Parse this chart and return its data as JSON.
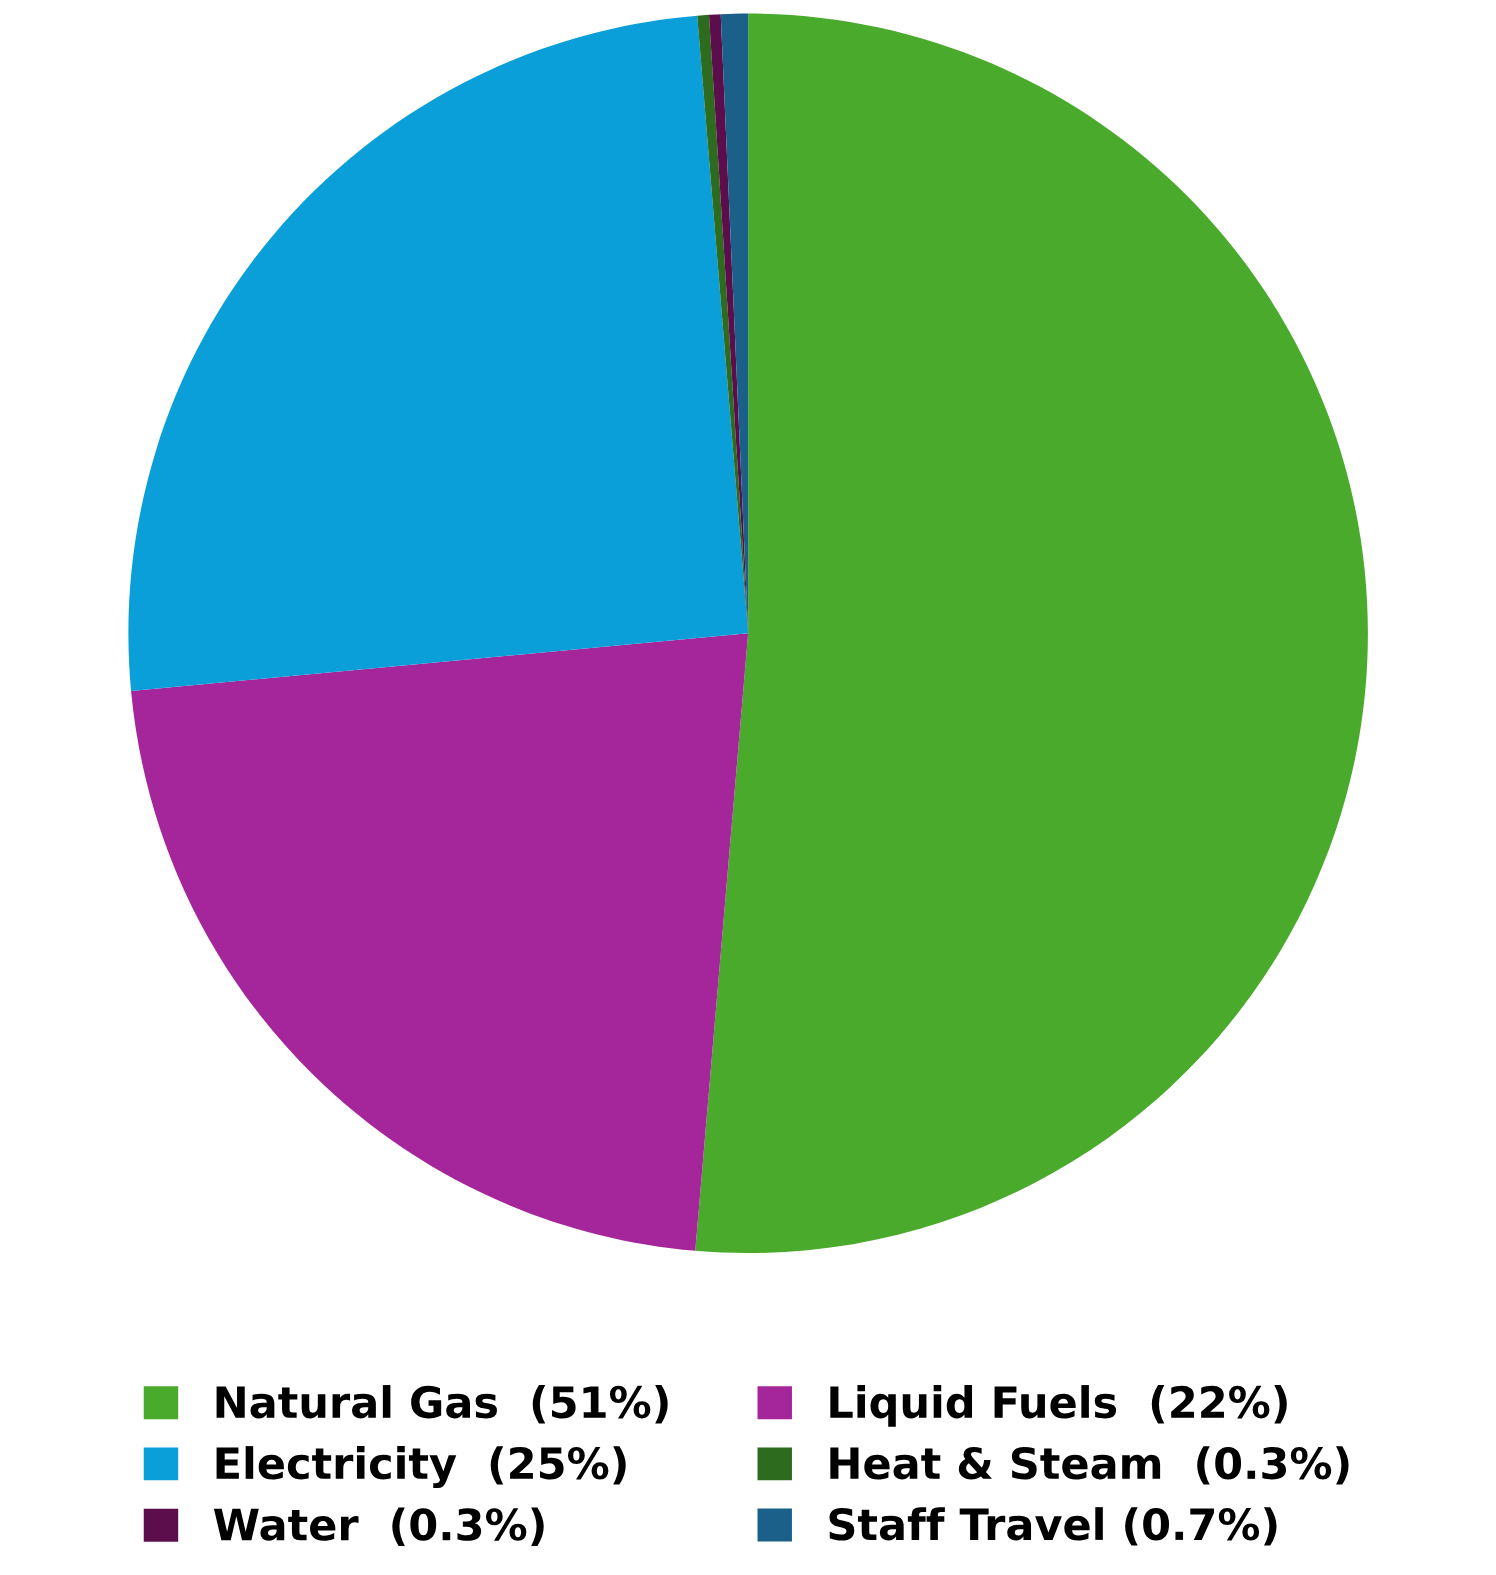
{
  "chart_data": {
    "type": "pie",
    "categories": [
      "Natural Gas  (51%)",
      "Liquid Fuels  (22%)",
      "Electricity  (25%)",
      "Heat & Steam  (0.3%)",
      "Water  (0.3%)",
      "Staff Travel (0.7%)"
    ],
    "values": [
      51,
      22,
      25,
      0.3,
      0.3,
      0.7
    ],
    "colors": [
      "#4aaa2c",
      "#a5259a",
      "#0a9fd9",
      "#2d6b1e",
      "#5c0e4c",
      "#1b6088"
    ],
    "legend": "bottom"
  }
}
